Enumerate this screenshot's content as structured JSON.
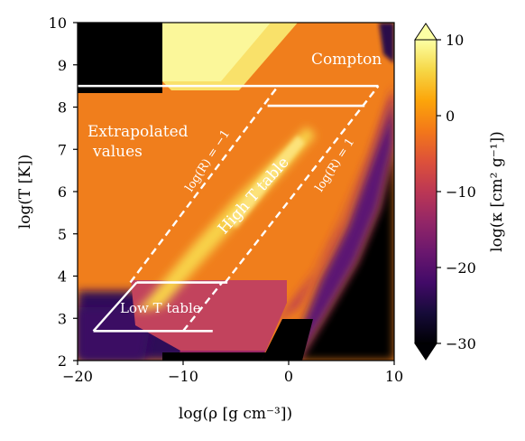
{
  "chart_data": {
    "type": "heatmap",
    "xlabel": "log(ρ [g cm⁻³])",
    "ylabel": "log(T [K])",
    "xlim": [
      -20,
      10
    ],
    "ylim": [
      2,
      10
    ],
    "xticks": [
      "−20",
      "−10",
      "0",
      "10"
    ],
    "xtick_values": [
      -20,
      -10,
      0,
      10
    ],
    "yticks": [
      "2",
      "3",
      "4",
      "5",
      "6",
      "7",
      "8",
      "9",
      "10"
    ],
    "ytick_values": [
      2,
      3,
      4,
      5,
      6,
      7,
      8,
      9,
      10
    ],
    "colorbar": {
      "label": "log(κ [cm² g⁻¹])",
      "range": [
        -30,
        10
      ],
      "ticks": [
        "10",
        "0",
        "−10",
        "−20",
        "−30"
      ],
      "tick_values": [
        10,
        0,
        -10,
        -20,
        -30
      ],
      "extend": "both",
      "colormap": "inferno"
    },
    "annotations": {
      "compton": "Compton",
      "extrapolated_line1": "Extrapolated",
      "extrapolated_line2": "values",
      "high_t_table": "High T table",
      "low_t_table": "Low T table",
      "r_minus1": "log(R) = −1",
      "r_plus1": "log(R) = 1"
    },
    "regions": {
      "high_t_table": {
        "style": "dashed",
        "corners": [
          [
            -15,
            3.85
          ],
          [
            -1,
            8.5
          ],
          [
            8.5,
            8.5
          ],
          [
            -6,
            3.85
          ]
        ]
      },
      "low_t_table": {
        "style": "solid",
        "corners": [
          [
            -18.5,
            2.7
          ],
          [
            -5.8,
            3.85
          ],
          [
            -6.3,
            3.85
          ],
          [
            -10,
            2.7
          ]
        ]
      },
      "extrapolation_boundaries": {
        "style": "solid",
        "lines": [
          [
            [
              -20,
              8.5
            ],
            [
              8.5,
              8.5
            ]
          ],
          [
            [
              -2,
              8.03
            ],
            [
              7.2,
              8.03
            ]
          ],
          [
            [
              -14.4,
              3.85
            ],
            [
              -5.8,
              3.85
            ]
          ],
          [
            [
              -18.5,
              2.7
            ],
            [
              -7.2,
              2.7
            ]
          ]
        ]
      }
    }
  }
}
